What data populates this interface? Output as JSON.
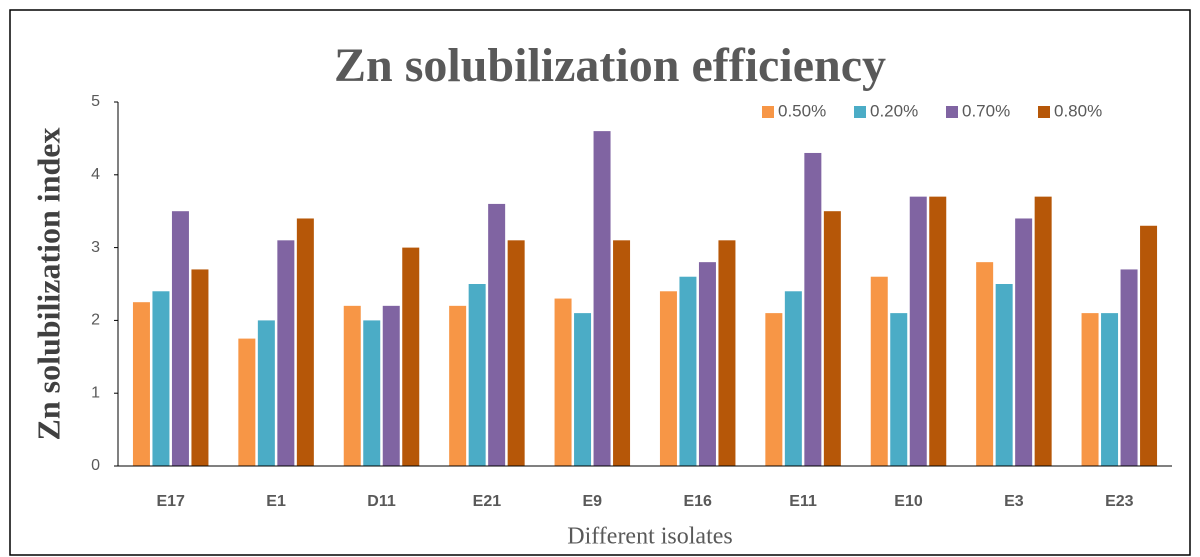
{
  "chart_data": {
    "type": "bar",
    "title": "Zn solubilization efficiency",
    "x_label": "Different isolates",
    "y_label": "Zn solubilization index",
    "categories": [
      "E17",
      "E1",
      "D11",
      "E21",
      "E9",
      "E16",
      "E11",
      "E10",
      "E3",
      "E23"
    ],
    "series": [
      {
        "name": "0.50%",
        "color": "#f79646",
        "values": [
          2.25,
          1.75,
          2.2,
          2.2,
          2.3,
          2.4,
          2.1,
          2.6,
          2.8,
          2.1
        ]
      },
      {
        "name": "0.20%",
        "color": "#4bacc6",
        "values": [
          2.4,
          2.0,
          2.0,
          2.5,
          2.1,
          2.6,
          2.4,
          2.1,
          2.5,
          2.1
        ]
      },
      {
        "name": "0.70%",
        "color": "#8064a2",
        "values": [
          3.5,
          3.1,
          2.2,
          3.6,
          4.6,
          2.8,
          4.3,
          3.7,
          3.4,
          2.7
        ]
      },
      {
        "name": "0.80%",
        "color": "#b65708",
        "values": [
          2.7,
          3.4,
          3.0,
          3.1,
          3.1,
          3.1,
          3.5,
          3.7,
          3.7,
          3.3
        ]
      }
    ],
    "ylim": [
      0,
      5
    ],
    "yticks": [
      0,
      1,
      2,
      3,
      4,
      5
    ],
    "grid": false,
    "legend": "top-right"
  }
}
